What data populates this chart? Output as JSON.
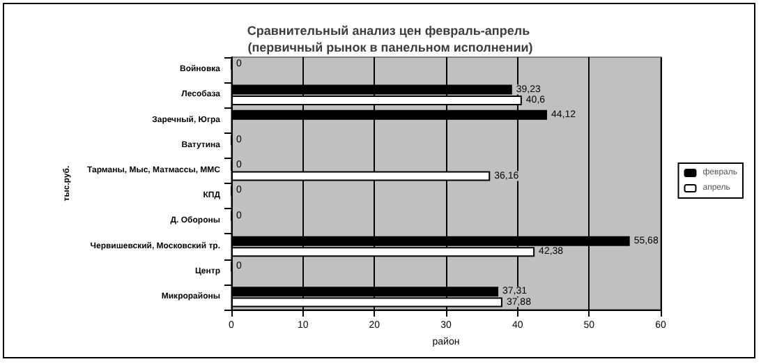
{
  "chart_data": {
    "type": "bar",
    "orientation": "horizontal",
    "title": "Сравнительный анализ цен февраль-апрель (первичный рынок в панельном исполнении)",
    "xlabel": "район",
    "ylabel": "тыс.руб.",
    "categories": [
      "Войновка",
      "Лесобаза",
      "Заречный, Югра",
      "Ватутина",
      "Тарманы, Мыс, Матмассы, ММС",
      "КПД",
      "Д. Обороны",
      "Червишевский, Московский тр.",
      "Центр",
      "Микрорайоны"
    ],
    "series": [
      {
        "name": "февраль",
        "color": "#000000",
        "values": [
          0,
          39.23,
          44.12,
          0,
          0,
          0,
          0,
          55.68,
          0,
          37.31
        ],
        "value_labels": [
          "0",
          "39,23",
          "44,12",
          "0",
          "0",
          "0",
          "0",
          "55,68",
          "0",
          "37,31"
        ]
      },
      {
        "name": "апрель",
        "color": "#ffffff",
        "values": [
          null,
          40.6,
          null,
          null,
          36.16,
          null,
          null,
          42.38,
          null,
          37.88
        ],
        "value_labels": [
          null,
          "40,6",
          null,
          null,
          "36,16",
          null,
          null,
          "42,38",
          null,
          "37,88"
        ]
      }
    ],
    "xlim": [
      0,
      60
    ],
    "xticks": [
      0,
      10,
      20,
      30,
      40,
      50,
      60
    ],
    "grid": "x",
    "legend": "right"
  }
}
